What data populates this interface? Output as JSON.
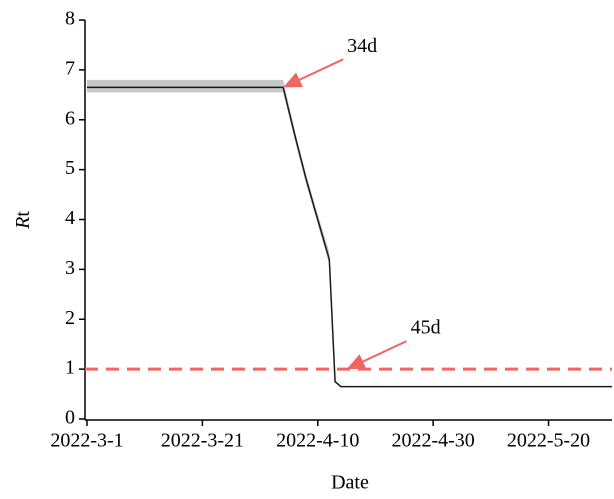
{
  "chart_data": {
    "type": "line",
    "ylabel": {
      "italic": "R",
      "plain": "t"
    },
    "xlabel": "Date",
    "x": [
      "2022-03-01",
      "2022-04-04",
      "2022-04-06",
      "2022-04-08",
      "2022-04-10",
      "2022-04-12",
      "2022-04-13",
      "2022-04-14",
      "2022-05-31"
    ],
    "values": [
      6.65,
      6.65,
      5.7,
      4.8,
      4.0,
      3.2,
      0.75,
      0.65,
      0.65
    ],
    "band_lower": [
      6.55,
      6.55,
      5.6,
      4.7,
      3.9,
      3.1,
      0.73,
      0.64,
      0.64
    ],
    "band_upper": [
      6.8,
      6.8,
      5.8,
      4.9,
      4.1,
      3.35,
      0.77,
      0.66,
      0.66
    ],
    "line_color": "#1a1a1a",
    "band_color": "#c8c8c8",
    "reference_line": {
      "value": 1,
      "color": "#f06464",
      "dashed": true
    },
    "annotations": [
      {
        "text": "34d",
        "x": "2022-04-04",
        "y": 6.65,
        "color": "#f06464"
      },
      {
        "text": "45d",
        "x": "2022-04-15",
        "y": 1,
        "color": "#f06464"
      }
    ],
    "xlim": [
      "2022-03-01",
      "2022-05-31"
    ],
    "xticks": [
      {
        "value": "2022-03-01",
        "label": "2022-3-1"
      },
      {
        "value": "2022-03-21",
        "label": "2022-3-21"
      },
      {
        "value": "2022-04-10",
        "label": "2022-4-10"
      },
      {
        "value": "2022-04-30",
        "label": "2022-4-30"
      },
      {
        "value": "2022-05-20",
        "label": "2022-5-20"
      }
    ],
    "ylim": [
      0,
      8
    ],
    "yticks": [
      0,
      1,
      2,
      3,
      4,
      5,
      6,
      7,
      8
    ]
  }
}
